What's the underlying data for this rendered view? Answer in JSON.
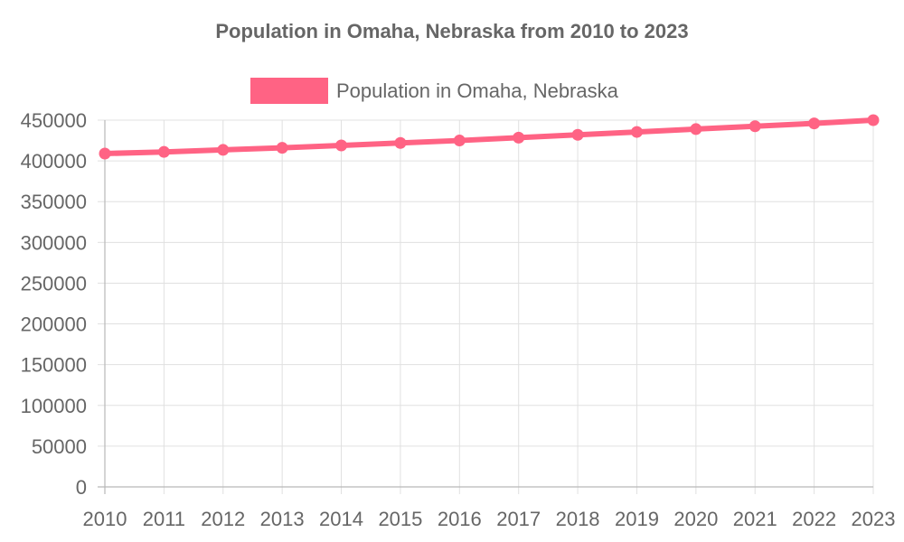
{
  "chart_data": {
    "type": "line",
    "title": "Population in Omaha, Nebraska from 2010 to 2023",
    "xlabel": "",
    "ylabel": "",
    "categories": [
      "2010",
      "2011",
      "2012",
      "2013",
      "2014",
      "2015",
      "2016",
      "2017",
      "2018",
      "2019",
      "2020",
      "2021",
      "2022",
      "2023"
    ],
    "series": [
      {
        "name": "Population in Omaha, Nebraska",
        "values": [
          409000,
          411000,
          413500,
          416000,
          419000,
          422000,
          425000,
          428500,
          432000,
          435500,
          439000,
          442500,
          446000,
          450000
        ],
        "color": "#ff6384"
      }
    ],
    "ylim": [
      0,
      450000
    ],
    "yticks": [
      0,
      50000,
      100000,
      150000,
      200000,
      250000,
      300000,
      350000,
      400000,
      450000
    ],
    "legend_position": "top",
    "grid": true
  }
}
